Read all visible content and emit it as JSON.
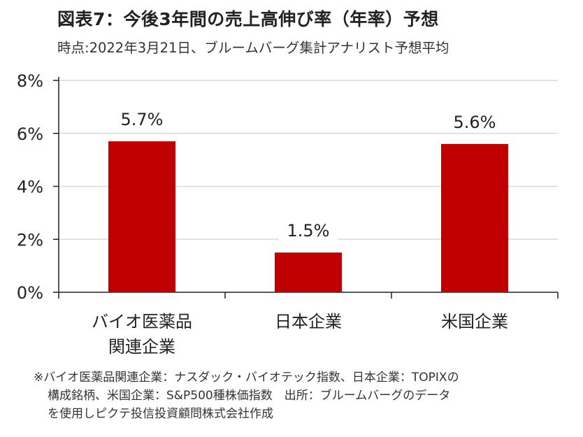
{
  "title": "図表7：今後3年間の売上高伸び率（年率）予想",
  "subtitle": "時点:2022年3月21日、ブルームバーグ集計アナリスト予想平均",
  "chart_data": {
    "type": "bar",
    "categories": [
      [
        "バイオ医薬品",
        "関連企業"
      ],
      [
        "日本企業"
      ],
      [
        "米国企業"
      ]
    ],
    "values": [
      5.7,
      1.5,
      5.6
    ],
    "value_labels": [
      "5.7%",
      "1.5%",
      "5.6%"
    ],
    "ylim": [
      0,
      8
    ],
    "yticks": [
      "0%",
      "2%",
      "4%",
      "6%",
      "8%"
    ],
    "ytick_values": [
      0,
      2,
      4,
      6,
      8
    ],
    "grid": true,
    "bar_color": "#c00000",
    "grid_color": "#d9d9d9"
  },
  "footnote": [
    "※バイオ医薬品関連企業：ナスダック・バイオテック指数、日本企業：TOPIXの",
    "構成銘柄、米国企業：S&P500種株価指数　出所：ブルームバーグのデータ",
    "を使用しピクテ投信投資顧問株式会社作成"
  ]
}
